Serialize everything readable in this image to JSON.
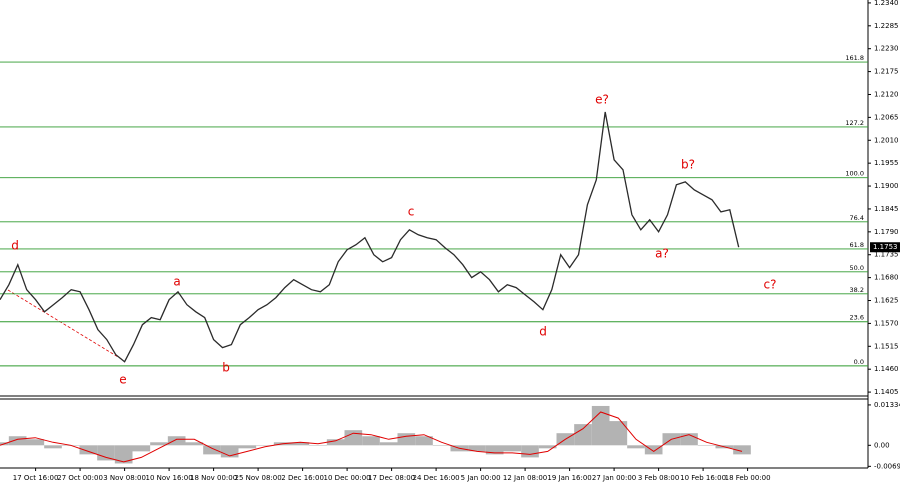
{
  "chart_data": [
    {
      "type": "price-line",
      "color": "#2b2b2b",
      "categories": [
        null,
        null,
        null,
        null,
        "17 Oct 16:00",
        null,
        null,
        null,
        null,
        "27 Oct 00:00",
        null,
        null,
        null,
        null,
        "3 Nov 08:00",
        null,
        null,
        null,
        null,
        "10 Nov 16:00",
        null,
        null,
        null,
        null,
        "18 Nov 00:00",
        null,
        null,
        null,
        null,
        "25 Nov 08:00",
        null,
        null,
        null,
        null,
        "2 Dec 16:00",
        null,
        null,
        null,
        null,
        "10 Dec 00:00",
        null,
        null,
        null,
        null,
        "17 Dec 08:00",
        null,
        null,
        null,
        null,
        "24 Dec 16:00",
        null,
        null,
        null,
        null,
        "5 Jan 00:00",
        null,
        null,
        null,
        null,
        "12 Jan 08:00",
        null,
        null,
        null,
        null,
        "19 Jan 16:00",
        null,
        null,
        null,
        null,
        "27 Jan 00:00",
        null,
        null,
        null,
        null,
        "3 Feb 08:00",
        null,
        null,
        null,
        null,
        "10 Feb 16:00",
        null,
        null,
        null,
        null,
        "18 Feb 00:00"
      ],
      "values": [
        1.1627,
        1.1663,
        1.1711,
        1.1651,
        1.1627,
        1.1598,
        1.1615,
        1.1632,
        1.1651,
        1.1646,
        1.1603,
        1.1555,
        1.1531,
        1.1495,
        1.1478,
        1.1519,
        1.1567,
        1.1584,
        1.1579,
        1.1627,
        1.1646,
        1.1615,
        1.1598,
        1.1584,
        1.1531,
        1.1512,
        1.1519,
        1.1567,
        1.1584,
        1.1603,
        1.1615,
        1.1632,
        1.1656,
        1.1675,
        1.1663,
        1.1651,
        1.1646,
        1.1663,
        1.1718,
        1.1747,
        1.1759,
        1.1776,
        1.1735,
        1.1718,
        1.1728,
        1.1771,
        1.1795,
        1.1783,
        1.1776,
        1.1771,
        1.1752,
        1.1735,
        1.1711,
        1.168,
        1.1694,
        1.1675,
        1.1646,
        1.1663,
        1.1656,
        1.1639,
        1.1622,
        1.1603,
        1.1651,
        1.1735,
        1.1704,
        1.1735,
        1.1855,
        1.1915,
        1.2078,
        1.1963,
        1.1939,
        1.1831,
        1.1795,
        1.1819,
        1.179,
        1.1831,
        1.1903,
        1.191,
        1.1891,
        1.1879,
        1.1867,
        1.1838,
        1.1843,
        1.1753,
        null
      ],
      "ylim": [
        1.1398,
        1.2347
      ],
      "yticks": [
        {
          "value": 1.234,
          "label": "1.2340"
        },
        1.2285,
        {
          "value": 1.223,
          "label": "1.2230"
        },
        1.2175,
        {
          "value": 1.212,
          "label": "1.2120"
        },
        1.2065,
        {
          "value": 1.201,
          "label": "1.2010"
        },
        1.1955,
        {
          "value": 1.19,
          "label": "1.1900"
        },
        1.1845,
        {
          "value": 1.179,
          "label": "1.1790"
        },
        1.1735,
        {
          "value": 1.168,
          "label": "1.1680"
        },
        1.1625,
        {
          "value": 1.157,
          "label": "1.1570"
        },
        1.1515,
        {
          "value": 1.146,
          "label": "1.1460"
        },
        1.1405
      ],
      "current_price": 1.1753,
      "fib_levels": [
        {
          "label": "161.8",
          "value": 1.2198
        },
        {
          "label": "127.2",
          "value": 1.2042
        },
        {
          "label": "100.0",
          "value": 1.192
        },
        {
          "label": "76.4",
          "value": 1.1814
        },
        {
          "label": "61.8",
          "value": 1.1749
        },
        {
          "label": "50.0",
          "value": 1.1694
        },
        {
          "label": "38.2",
          "value": 1.1641
        },
        {
          "label": "23.6",
          "value": 1.1574
        },
        {
          "label": "0.0",
          "value": 1.1468
        }
      ],
      "fib_color": "#2e9a2e",
      "annotations": [
        "d",
        "e",
        "a",
        "b",
        "c",
        "d",
        "e?",
        "a?",
        "b?",
        "c?"
      ],
      "annotation_color": "#e00000"
    },
    {
      "type": "oscillator",
      "series": [
        {
          "color": "#b3b3b3",
          "values": [
            0.001,
            0.003,
            0.002,
            -0.001,
            0.0,
            -0.003,
            -0.005,
            -0.006,
            -0.002,
            0.001,
            0.003,
            0.001,
            -0.003,
            -0.004,
            -0.001,
            0.0,
            0.001,
            0.001,
            0.0,
            0.002,
            0.005,
            0.003,
            0.001,
            0.004,
            0.003,
            0.0,
            -0.002,
            -0.002,
            -0.003,
            -0.002,
            -0.004,
            -0.001,
            0.004,
            0.007,
            0.013,
            0.008,
            -0.001,
            -0.003,
            0.004,
            0.004,
            0.0,
            -0.001,
            -0.003
          ]
        },
        {
          "color": "#e00000",
          "values": [
            0.0,
            0.002,
            0.0025,
            0.001,
            0.0,
            -0.002,
            -0.004,
            -0.0055,
            -0.004,
            -0.001,
            0.002,
            0.002,
            -0.001,
            -0.0035,
            -0.002,
            -0.0005,
            0.0005,
            0.001,
            0.0005,
            0.0015,
            0.004,
            0.0035,
            0.002,
            0.003,
            0.0035,
            0.001,
            -0.001,
            -0.002,
            -0.0025,
            -0.0025,
            -0.003,
            -0.002,
            0.002,
            0.0055,
            0.011,
            0.009,
            0.002,
            -0.002,
            0.002,
            0.0035,
            0.001,
            -0.0005,
            -0.002
          ]
        }
      ],
      "ylim": [
        -0.0075,
        0.0153
      ],
      "yticks": [
        0.01334,
        {
          "value": 0,
          "label": "0.00"
        },
        -0.00695
      ]
    }
  ]
}
